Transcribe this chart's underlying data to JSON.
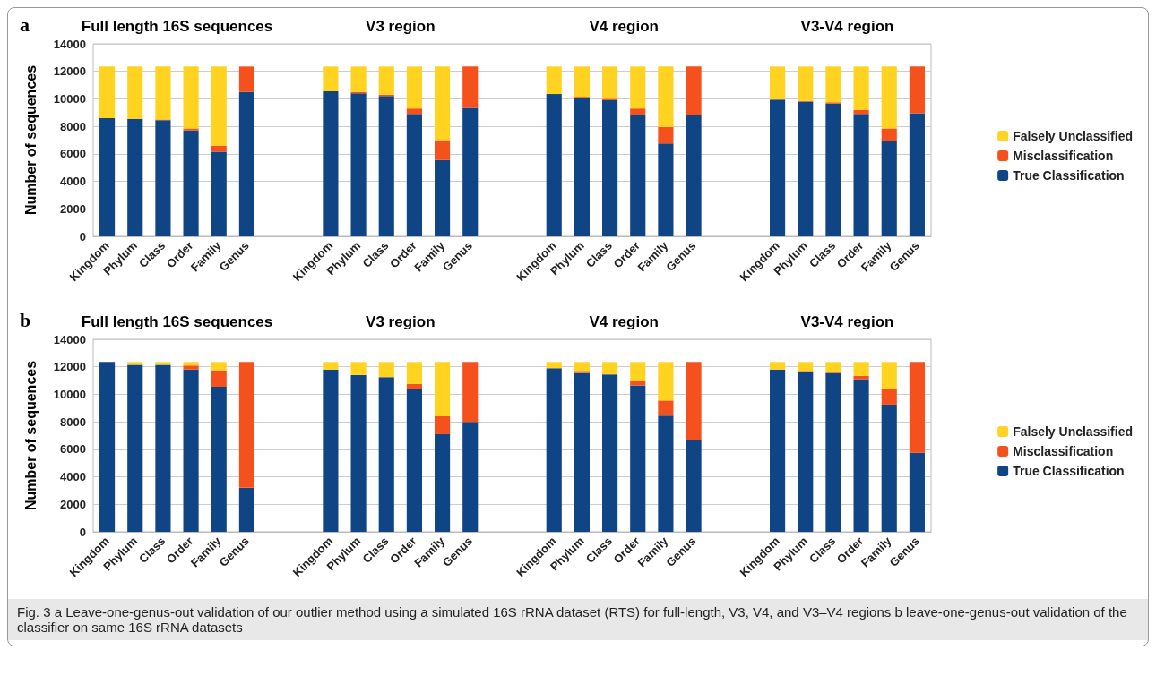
{
  "chart_data": [
    {
      "type": "bar",
      "title": "a",
      "ylabel": "Number of sequences",
      "stacked": true,
      "legend": "right",
      "grid": "y",
      "ylim": [
        0,
        14000
      ],
      "yticks": [
        0,
        2000,
        4000,
        6000,
        8000,
        10000,
        12000,
        14000
      ],
      "categories": [
        "Kingdom",
        "Phylum",
        "Class",
        "Order",
        "Family",
        "Genus",
        null,
        null,
        "Kingdom",
        "Phylum",
        "Class",
        "Order",
        "Family",
        "Genus",
        null,
        null,
        "Kingdom",
        "Phylum",
        "Class",
        "Order",
        "Family",
        "Genus",
        null,
        null,
        "Kingdom",
        "Phylum",
        "Class",
        "Order",
        "Family",
        "Genus"
      ],
      "annotations": [
        "Full length 16S sequences",
        "V3 region",
        "V4 region",
        "V3-V4 region"
      ],
      "series": [
        {
          "name": "True Classification",
          "color": "#0f4584",
          "values": [
            8600,
            8550,
            8450,
            7700,
            6150,
            10500,
            null,
            null,
            10550,
            10400,
            10200,
            8900,
            5550,
            9350,
            null,
            null,
            10350,
            10050,
            9900,
            8850,
            6750,
            8800,
            null,
            null,
            9950,
            9800,
            9650,
            8900,
            6900,
            8950
          ]
        },
        {
          "name": "Misclassification",
          "color": "#f5511d",
          "values": [
            0,
            0,
            50,
            150,
            450,
            1850,
            null,
            null,
            0,
            100,
            100,
            400,
            1450,
            3000,
            null,
            null,
            0,
            100,
            100,
            450,
            1200,
            3550,
            null,
            null,
            0,
            50,
            100,
            300,
            950,
            3400
          ]
        },
        {
          "name": "Falsely Unclassified",
          "color": "#ffd31f",
          "values": [
            3750,
            3800,
            3850,
            4500,
            5750,
            0,
            null,
            null,
            1800,
            1850,
            2050,
            3050,
            5350,
            0,
            null,
            null,
            2000,
            2200,
            2350,
            3050,
            4400,
            0,
            null,
            null,
            2400,
            2500,
            2600,
            3150,
            4500,
            0
          ]
        }
      ]
    },
    {
      "type": "bar",
      "title": "b",
      "ylabel": "Number of sequences",
      "stacked": true,
      "legend": "right",
      "grid": "y",
      "ylim": [
        0,
        14000
      ],
      "yticks": [
        0,
        2000,
        4000,
        6000,
        8000,
        10000,
        12000,
        14000
      ],
      "categories": [
        "Kingdom",
        "Phylum",
        "Class",
        "Order",
        "Family",
        "Genus",
        null,
        null,
        "Kingdom",
        "Phylum",
        "Class",
        "Order",
        "Family",
        "Genus",
        null,
        null,
        "Kingdom",
        "Phylum",
        "Class",
        "Order",
        "Family",
        "Genus",
        null,
        null,
        "Kingdom",
        "Phylum",
        "Class",
        "Order",
        "Family",
        "Genus"
      ],
      "annotations": [
        "Full length 16S sequences",
        "V3 region",
        "V4 region",
        "V3-V4 region",
        "Fig. 3  a Leave-one-genus-out validation of our outlier method using a simulated 16S rRNA dataset (RTS) for full-length, V3, V4, and V3–V4 regions b leave-one-genus-out validation of the classifier on same 16S rRNA datasets"
      ],
      "series": [
        {
          "name": "True Classification",
          "color": "#0f4584",
          "values": [
            12350,
            12150,
            12150,
            11800,
            10550,
            3200,
            null,
            null,
            11800,
            11400,
            11250,
            10400,
            7100,
            8000,
            null,
            null,
            11900,
            11550,
            11450,
            10650,
            8450,
            6700,
            null,
            null,
            11800,
            11600,
            11550,
            11100,
            9250,
            5750
          ]
        },
        {
          "name": "Misclassification",
          "color": "#f5511d",
          "values": [
            0,
            0,
            0,
            300,
            1200,
            9150,
            null,
            null,
            0,
            0,
            0,
            350,
            1300,
            4350,
            null,
            null,
            0,
            150,
            0,
            300,
            1100,
            5650,
            null,
            null,
            0,
            100,
            50,
            250,
            1150,
            6600
          ]
        },
        {
          "name": "Falsely Unclassified",
          "color": "#ffd31f",
          "values": [
            0,
            200,
            200,
            250,
            600,
            0,
            null,
            null,
            550,
            950,
            1100,
            1600,
            3950,
            0,
            null,
            null,
            450,
            650,
            900,
            1400,
            2800,
            0,
            null,
            null,
            550,
            650,
            750,
            1000,
            1950,
            0
          ]
        }
      ]
    }
  ]
}
